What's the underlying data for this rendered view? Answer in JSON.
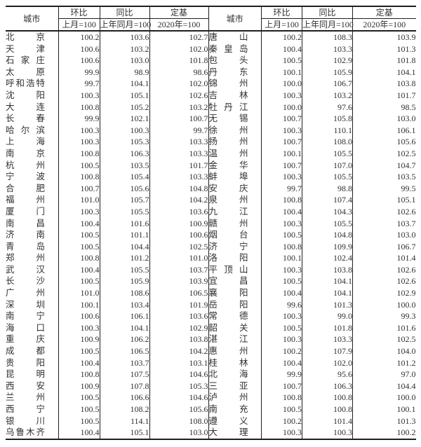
{
  "colors": {
    "background": "#ffffff",
    "text": "#303030",
    "border": "#1f1f1f"
  },
  "table": {
    "headers": {
      "city": "城市",
      "mom": "环比",
      "yoy": "同比",
      "base": "定基",
      "mom_sub": "上月=100",
      "yoy_sub": "上年同月=100",
      "base_sub": "2020年=100"
    },
    "left_rows": [
      [
        "北京",
        "100.2",
        "103.6",
        "102.7"
      ],
      [
        "天津",
        "100.6",
        "103.2",
        "102.0"
      ],
      [
        "石家庄",
        "100.6",
        "103.0",
        "101.8"
      ],
      [
        "太原",
        "99.9",
        "98.9",
        "98.6"
      ],
      [
        "呼和浩特",
        "99.7",
        "104.1",
        "102.0"
      ],
      [
        "沈阳",
        "100.3",
        "105.1",
        "102.6"
      ],
      [
        "大连",
        "100.8",
        "105.2",
        "103.2"
      ],
      [
        "长春",
        "99.9",
        "102.1",
        "100.7"
      ],
      [
        "哈尔滨",
        "100.3",
        "100.3",
        "99.7"
      ],
      [
        "上海",
        "100.3",
        "105.3",
        "103.3"
      ],
      [
        "南京",
        "100.8",
        "106.3",
        "103.3"
      ],
      [
        "杭州",
        "100.5",
        "103.5",
        "101.7"
      ],
      [
        "宁波",
        "100.8",
        "105.4",
        "103.3"
      ],
      [
        "合肥",
        "100.7",
        "105.6",
        "104.8"
      ],
      [
        "福州",
        "101.0",
        "105.7",
        "104.2"
      ],
      [
        "厦门",
        "100.3",
        "105.5",
        "103.6"
      ],
      [
        "南昌",
        "100.4",
        "101.6",
        "100.9"
      ],
      [
        "济南",
        "100.5",
        "101.1",
        "100.6"
      ],
      [
        "青岛",
        "100.5",
        "104.4",
        "102.5"
      ],
      [
        "郑州",
        "100.8",
        "101.2",
        "101.0"
      ],
      [
        "武汉",
        "100.4",
        "105.5",
        "103.7"
      ],
      [
        "长沙",
        "100.5",
        "105.9",
        "103.9"
      ],
      [
        "广州",
        "101.0",
        "108.6",
        "106.5"
      ],
      [
        "深圳",
        "100.1",
        "103.4",
        "101.9"
      ],
      [
        "南宁",
        "100.6",
        "106.1",
        "103.6"
      ],
      [
        "海口",
        "100.3",
        "104.1",
        "102.9"
      ],
      [
        "重庆",
        "100.9",
        "106.2",
        "103.8"
      ],
      [
        "成都",
        "100.5",
        "106.5",
        "104.2"
      ],
      [
        "贵阳",
        "100.4",
        "103.7",
        "103.1"
      ],
      [
        "昆明",
        "100.8",
        "107.5",
        "104.6"
      ],
      [
        "西安",
        "100.9",
        "107.8",
        "105.3"
      ],
      [
        "兰州",
        "100.5",
        "106.6",
        "104.6"
      ],
      [
        "西宁",
        "100.5",
        "108.2",
        "105.6"
      ],
      [
        "银川",
        "100.5",
        "114.1",
        "108.0"
      ],
      [
        "乌鲁木齐",
        "100.4",
        "105.1",
        "103.0"
      ]
    ],
    "right_rows": [
      [
        "唐山",
        "100.2",
        "108.3",
        "103.9"
      ],
      [
        "秦皇岛",
        "100.4",
        "103.3",
        "101.3"
      ],
      [
        "包头",
        "100.5",
        "102.9",
        "101.8"
      ],
      [
        "丹东",
        "100.1",
        "105.9",
        "104.1"
      ],
      [
        "锦州",
        "100.0",
        "106.7",
        "103.8"
      ],
      [
        "吉林",
        "100.3",
        "103.2",
        "101.7"
      ],
      [
        "牡丹江",
        "100.0",
        "97.6",
        "98.5"
      ],
      [
        "无锡",
        "100.7",
        "105.8",
        "103.0"
      ],
      [
        "徐州",
        "100.3",
        "110.1",
        "106.1"
      ],
      [
        "扬州",
        "100.7",
        "108.0",
        "105.6"
      ],
      [
        "温州",
        "100.1",
        "105.5",
        "102.5"
      ],
      [
        "金华",
        "100.7",
        "107.0",
        "104.7"
      ],
      [
        "蚌埠",
        "100.3",
        "105.5",
        "103.5"
      ],
      [
        "安庆",
        "99.7",
        "98.8",
        "99.5"
      ],
      [
        "泉州",
        "100.8",
        "107.4",
        "105.1"
      ],
      [
        "九江",
        "100.4",
        "104.3",
        "102.6"
      ],
      [
        "赣州",
        "100.3",
        "105.5",
        "103.7"
      ],
      [
        "烟台",
        "100.5",
        "104.8",
        "103.0"
      ],
      [
        "济宁",
        "100.8",
        "109.9",
        "106.7"
      ],
      [
        "洛阳",
        "100.1",
        "102.4",
        "101.4"
      ],
      [
        "平顶山",
        "100.3",
        "103.8",
        "102.6"
      ],
      [
        "宜昌",
        "100.5",
        "104.1",
        "102.6"
      ],
      [
        "襄阳",
        "100.4",
        "104.1",
        "102.9"
      ],
      [
        "岳阳",
        "99.6",
        "101.3",
        "100.0"
      ],
      [
        "常德",
        "100.3",
        "99.0",
        "99.3"
      ],
      [
        "韶关",
        "100.5",
        "101.8",
        "101.6"
      ],
      [
        "湛江",
        "100.3",
        "103.3",
        "102.5"
      ],
      [
        "惠州",
        "100.2",
        "107.9",
        "104.0"
      ],
      [
        "桂林",
        "100.4",
        "102.0",
        "101.2"
      ],
      [
        "北海",
        "99.9",
        "95.6",
        "97.0"
      ],
      [
        "三亚",
        "100.7",
        "106.3",
        "104.4"
      ],
      [
        "泸州",
        "100.8",
        "100.8",
        "100.0"
      ],
      [
        "南充",
        "100.5",
        "100.8",
        "100.1"
      ],
      [
        "遵义",
        "100.2",
        "101.4",
        "101.3"
      ],
      [
        "大理",
        "100.3",
        "100.3",
        "100.2"
      ]
    ]
  }
}
